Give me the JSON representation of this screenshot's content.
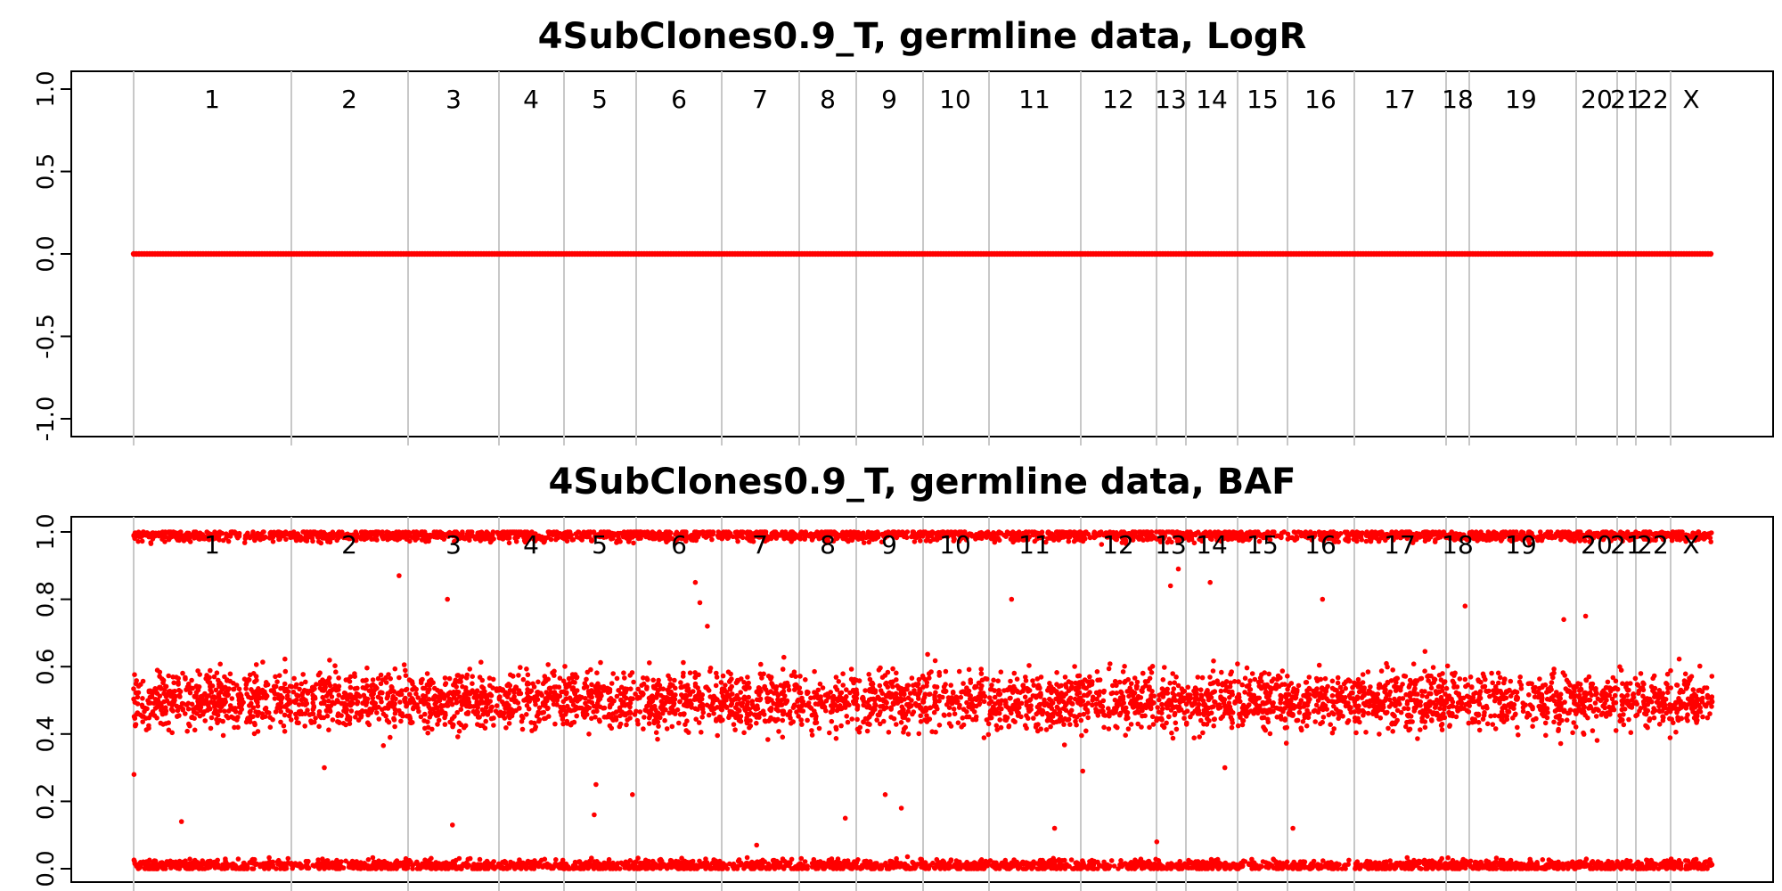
{
  "chart_data": [
    {
      "type": "scatter",
      "title": "4SubClones0.9_T, germline data, LogR",
      "xlabel": "",
      "ylabel": "",
      "ylim": [
        -1.0,
        1.0
      ],
      "yticks": [
        "-1.0",
        "-0.5",
        "0.0",
        "0.5",
        "1.0"
      ],
      "yticks_values": [
        -1.0,
        -0.5,
        0.0,
        0.5,
        1.0
      ],
      "grid": false,
      "point_color": "#ff0000",
      "chromosomes": [
        "1",
        "2",
        "3",
        "4",
        "5",
        "6",
        "7",
        "8",
        "9",
        "10",
        "11",
        "12",
        "13",
        "14",
        "15",
        "16",
        "17",
        "18",
        "19",
        "20",
        "21",
        "22",
        "X"
      ],
      "series": [
        {
          "chromosome_value": 0.0
        }
      ]
    },
    {
      "type": "scatter",
      "title": "4SubClones0.9_T, germline data, BAF",
      "xlabel": "",
      "ylabel": "",
      "ylim": [
        0.0,
        1.0
      ],
      "yticks": [
        "0.0",
        "0.2",
        "0.4",
        "0.6",
        "0.8",
        "1.0"
      ],
      "yticks_values": [
        0.0,
        0.2,
        0.4,
        0.6,
        0.8,
        1.0
      ],
      "grid": false,
      "point_color": "#ff0000",
      "chromosomes": [
        "1",
        "2",
        "3",
        "4",
        "5",
        "6",
        "7",
        "8",
        "9",
        "10",
        "11",
        "12",
        "13",
        "14",
        "15",
        "16",
        "17",
        "18",
        "19",
        "20",
        "21",
        "22",
        "X"
      ],
      "bands": [
        {
          "center": 0.99,
          "spread": 0.012
        },
        {
          "center": 0.5,
          "spread": 0.06
        },
        {
          "center": 0.01,
          "spread": 0.012
        }
      ],
      "outliers": [
        0.85,
        0.8,
        0.87,
        0.78,
        0.89,
        0.85,
        0.72,
        0.75,
        0.84,
        0.8,
        0.79,
        0.8,
        0.74,
        0.15,
        0.22,
        0.12,
        0.13,
        0.18,
        0.07,
        0.14,
        0.22,
        0.16,
        0.25,
        0.12,
        0.08,
        0.3,
        0.28,
        0.29,
        0.3
      ]
    }
  ]
}
